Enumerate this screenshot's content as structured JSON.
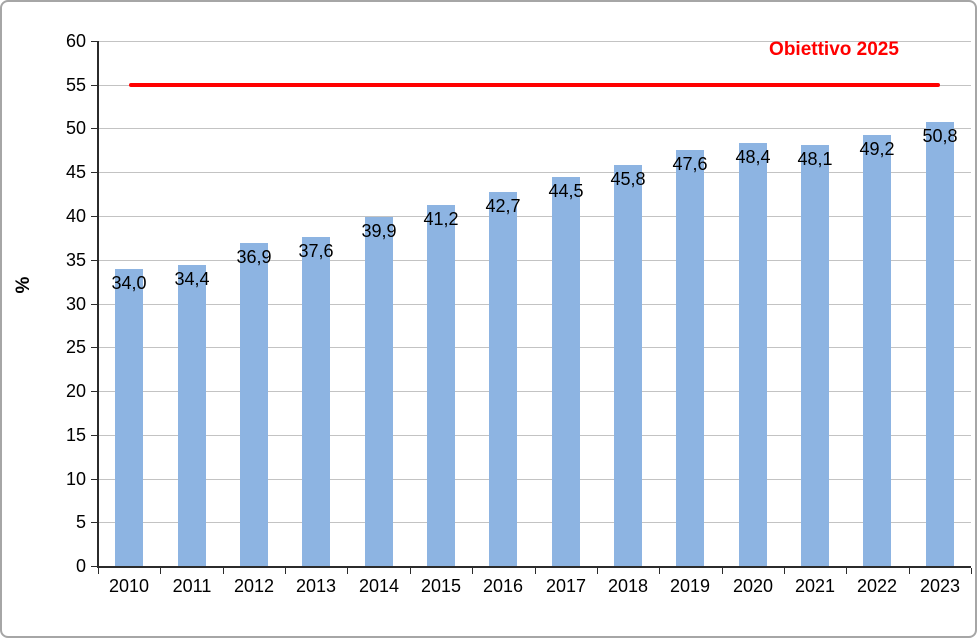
{
  "chart_data": {
    "type": "bar",
    "title": "",
    "ylabel": "%",
    "xlabel": "",
    "categories": [
      "2010",
      "2011",
      "2012",
      "2013",
      "2014",
      "2015",
      "2016",
      "2017",
      "2018",
      "2019",
      "2020",
      "2021",
      "2022",
      "2023"
    ],
    "values": [
      34.0,
      34.4,
      36.9,
      37.6,
      39.9,
      41.2,
      42.7,
      44.5,
      45.8,
      47.6,
      48.4,
      48.1,
      49.2,
      50.8
    ],
    "value_labels": [
      "34,0",
      "34,4",
      "36,9",
      "37,6",
      "39,9",
      "41,2",
      "42,7",
      "44,5",
      "45,8",
      "47,6",
      "48,4",
      "48,1",
      "49,2",
      "50,8"
    ],
    "ylim": [
      0,
      60
    ],
    "ytick_step": 5,
    "grid": true,
    "legend_position": "none",
    "bar_color": "#8db4e2",
    "target_line": {
      "value": 55,
      "label": "Obiettivo 2025",
      "color": "#ff0000"
    },
    "colors": {
      "grid": "#c3c3c3",
      "axis": "#2b2b2b",
      "text": "#000000",
      "frame_border": "#a6a6a6"
    }
  }
}
